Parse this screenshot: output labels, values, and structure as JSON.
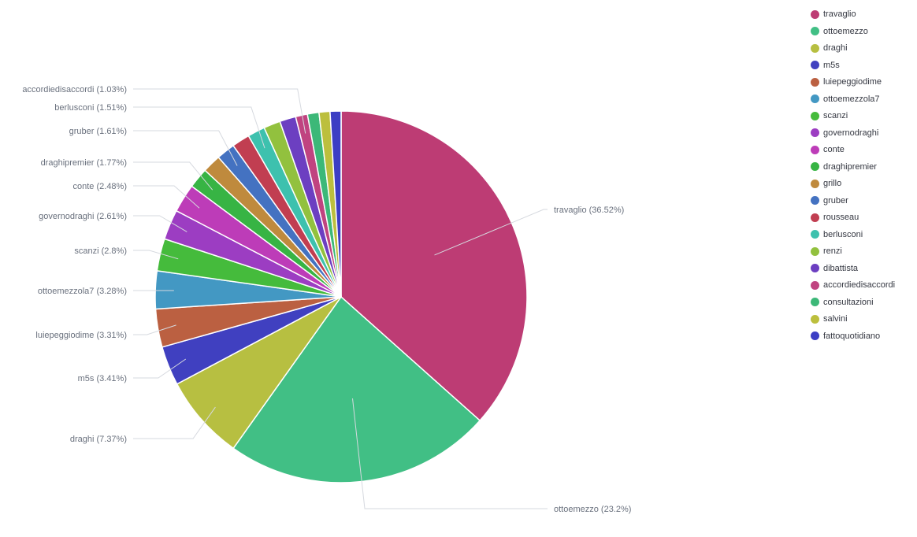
{
  "chart_data": {
    "type": "pie",
    "slices": [
      {
        "label": "travaglio",
        "percent": 36.52,
        "color": "#bd3c74",
        "slice_label": "travaglio (36.52%)"
      },
      {
        "label": "ottoemezzo",
        "percent": 23.2,
        "color": "#41bf85",
        "slice_label": "ottoemezzo (23.2%)"
      },
      {
        "label": "draghi",
        "percent": 7.37,
        "color": "#b7bf41",
        "slice_label": "draghi (7.37%)"
      },
      {
        "label": "m5s",
        "percent": 3.41,
        "color": "#4040c0",
        "slice_label": "m5s (3.41%)"
      },
      {
        "label": "luiepeggiodime",
        "percent": 3.31,
        "color": "#bb6041",
        "slice_label": "luiepeggiodime (3.31%)"
      },
      {
        "label": "ottoemezzola7",
        "percent": 3.28,
        "color": "#4398c3",
        "slice_label": "ottoemezzola7 (3.28%)"
      },
      {
        "label": "scanzi",
        "percent": 2.8,
        "color": "#45bb3c",
        "slice_label": "scanzi (2.8%)"
      },
      {
        "label": "governodraghi",
        "percent": 2.61,
        "color": "#9c3dc2",
        "slice_label": "governodraghi (2.61%)"
      },
      {
        "label": "conte",
        "percent": 2.48,
        "color": "#bd3cb8",
        "slice_label": "conte (2.48%)"
      },
      {
        "label": "draghipremier",
        "percent": 1.77,
        "color": "#37b444",
        "slice_label": "draghipremier (1.77%)"
      },
      {
        "label": "grillo",
        "percent": 1.6,
        "color": "#bf8a3d",
        "slice_label": ""
      },
      {
        "label": "gruber",
        "percent": 1.61,
        "color": "#4472c1",
        "slice_label": "gruber (1.61%)"
      },
      {
        "label": "rousseau",
        "percent": 1.55,
        "color": "#c13e51",
        "slice_label": ""
      },
      {
        "label": "berlusconi",
        "percent": 1.51,
        "color": "#3dc1ae",
        "slice_label": "berlusconi (1.51%)"
      },
      {
        "label": "renzi",
        "percent": 1.45,
        "color": "#92c13e",
        "slice_label": ""
      },
      {
        "label": "dibattista",
        "percent": 1.4,
        "color": "#6c3fc1",
        "slice_label": ""
      },
      {
        "label": "accordiedisaccordi",
        "percent": 1.03,
        "color": "#c04380",
        "slice_label": "accordiedisaccordi (1.03%)"
      },
      {
        "label": "consultazioni",
        "percent": 1.0,
        "color": "#3cb878",
        "slice_label": ""
      },
      {
        "label": "salvini",
        "percent": 0.95,
        "color": "#bcbf3d",
        "slice_label": ""
      },
      {
        "label": "fattoquotidiano",
        "percent": 0.95,
        "color": "#3c3ec4",
        "slice_label": ""
      }
    ],
    "legend_placement": "top-right"
  },
  "legend": {
    "items": [
      {
        "label": "travaglio",
        "color": "#bd3c74"
      },
      {
        "label": "ottoemezzo",
        "color": "#41bf85"
      },
      {
        "label": "draghi",
        "color": "#b7bf41"
      },
      {
        "label": "m5s",
        "color": "#4040c0"
      },
      {
        "label": "luiepeggiodime",
        "color": "#bb6041"
      },
      {
        "label": "ottoemezzola7",
        "color": "#4398c3"
      },
      {
        "label": "scanzi",
        "color": "#45bb3c"
      },
      {
        "label": "governodraghi",
        "color": "#9c3dc2"
      },
      {
        "label": "conte",
        "color": "#bd3cb8"
      },
      {
        "label": "draghipremier",
        "color": "#37b444"
      },
      {
        "label": "grillo",
        "color": "#bf8a3d"
      },
      {
        "label": "gruber",
        "color": "#4472c1"
      },
      {
        "label": "rousseau",
        "color": "#c13e51"
      },
      {
        "label": "berlusconi",
        "color": "#3dc1ae"
      },
      {
        "label": "renzi",
        "color": "#92c13e"
      },
      {
        "label": "dibattista",
        "color": "#6c3fc1"
      },
      {
        "label": "accordiedisaccordi",
        "color": "#c04380"
      },
      {
        "label": "consultazioni",
        "color": "#3cb878"
      },
      {
        "label": "salvini",
        "color": "#bcbf3d"
      },
      {
        "label": "fattoquotidiano",
        "color": "#3c3ec4"
      }
    ]
  }
}
